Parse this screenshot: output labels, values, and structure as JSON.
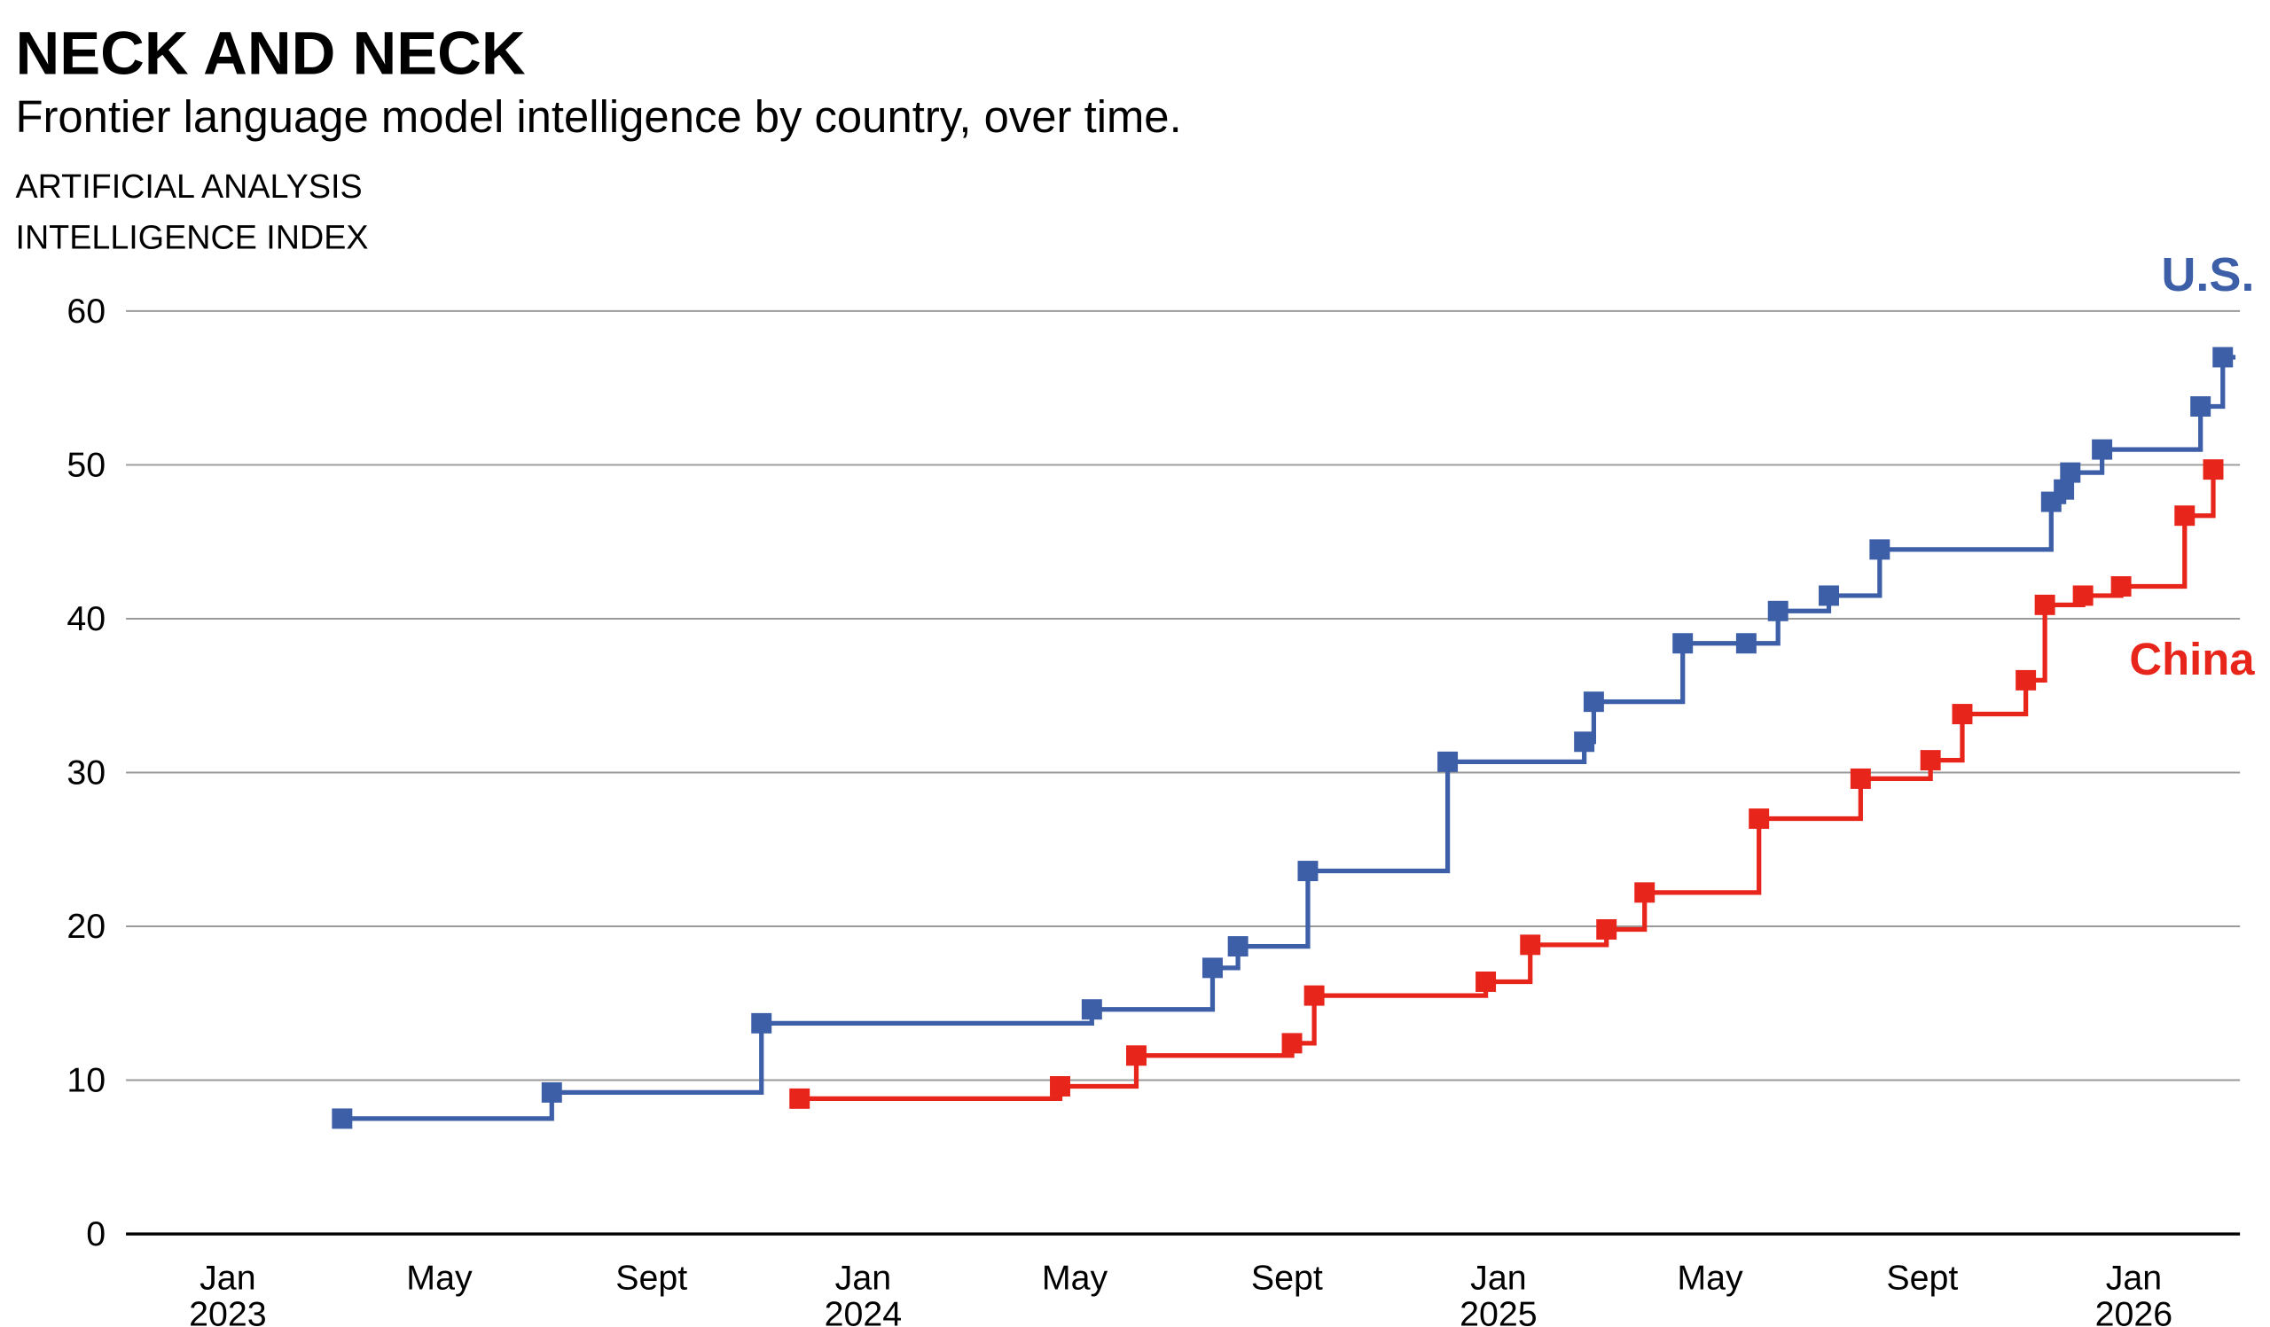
{
  "chart_data": {
    "type": "line",
    "step": "after",
    "title": "NECK AND NECK",
    "subtitle": "Frontier language model intelligence by country, over time.",
    "ylabel_lines": [
      "ARTIFICIAL ANALYSIS",
      "INTELLIGENCE INDEX"
    ],
    "ylim": [
      0,
      60
    ],
    "yticks": [
      0,
      10,
      20,
      30,
      40,
      50,
      60
    ],
    "x_unit": "decimal year",
    "xlim": [
      2022.8,
      2026.16
    ],
    "xticks": [
      {
        "x": 2023.0,
        "label": "Jan",
        "year": "2023"
      },
      {
        "x": 2023.333,
        "label": "May",
        "year": ""
      },
      {
        "x": 2023.667,
        "label": "Sept",
        "year": ""
      },
      {
        "x": 2024.0,
        "label": "Jan",
        "year": "2024"
      },
      {
        "x": 2024.333,
        "label": "May",
        "year": ""
      },
      {
        "x": 2024.667,
        "label": "Sept",
        "year": ""
      },
      {
        "x": 2025.0,
        "label": "Jan",
        "year": "2025"
      },
      {
        "x": 2025.333,
        "label": "May",
        "year": ""
      },
      {
        "x": 2025.667,
        "label": "Sept",
        "year": ""
      },
      {
        "x": 2026.0,
        "label": "Jan",
        "year": "2026"
      }
    ],
    "grid": true,
    "series": [
      {
        "name": "U.S.",
        "color": "#3d5fa8",
        "end_x": 2026.16,
        "points": [
          [
            2023.18,
            7.5
          ],
          [
            2023.51,
            9.2
          ],
          [
            2023.84,
            13.7
          ],
          [
            2024.36,
            14.6
          ],
          [
            2024.55,
            17.3
          ],
          [
            2024.59,
            18.7
          ],
          [
            2024.7,
            23.6
          ],
          [
            2024.92,
            30.7
          ],
          [
            2025.135,
            32.0
          ],
          [
            2025.15,
            34.6
          ],
          [
            2025.29,
            38.4
          ],
          [
            2025.39,
            38.4
          ],
          [
            2025.44,
            40.5
          ],
          [
            2025.52,
            41.5
          ],
          [
            2025.6,
            44.5
          ],
          [
            2025.87,
            47.6
          ],
          [
            2025.89,
            48.4
          ],
          [
            2025.9,
            49.5
          ],
          [
            2025.95,
            51.0
          ],
          [
            2026.105,
            53.8
          ],
          [
            2026.14,
            57.0
          ]
        ]
      },
      {
        "name": "China",
        "color": "#e8251b",
        "end_x": 2026.14,
        "points": [
          [
            2023.9,
            8.8
          ],
          [
            2024.31,
            9.6
          ],
          [
            2024.43,
            11.6
          ],
          [
            2024.675,
            12.4
          ],
          [
            2024.71,
            15.5
          ],
          [
            2024.98,
            16.4
          ],
          [
            2025.05,
            18.8
          ],
          [
            2025.17,
            19.8
          ],
          [
            2025.23,
            22.2
          ],
          [
            2025.41,
            27.0
          ],
          [
            2025.57,
            29.6
          ],
          [
            2025.68,
            30.8
          ],
          [
            2025.73,
            33.8
          ],
          [
            2025.83,
            36.0
          ],
          [
            2025.86,
            40.9
          ],
          [
            2025.92,
            41.5
          ],
          [
            2025.98,
            42.1
          ],
          [
            2026.08,
            46.7
          ],
          [
            2026.125,
            49.7
          ]
        ]
      }
    ]
  }
}
